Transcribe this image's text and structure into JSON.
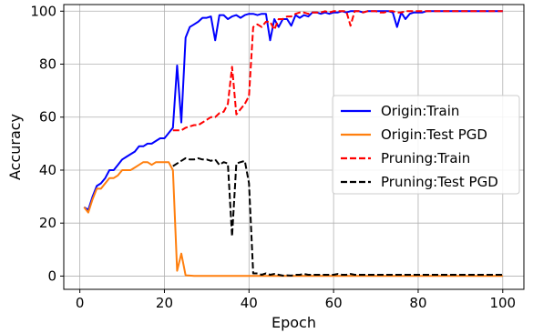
{
  "chart_data": {
    "type": "line",
    "title": "",
    "xlabel": "Epoch",
    "ylabel": "Accuracy",
    "xlim": [
      -3.8,
      105
    ],
    "ylim": [
      -5,
      102.5
    ],
    "xticks": [
      0,
      20,
      40,
      60,
      80,
      100
    ],
    "yticks": [
      0,
      20,
      40,
      60,
      80,
      100
    ],
    "grid": true,
    "legend_position": "center-right",
    "series": [
      {
        "name": "Origin:Train",
        "color": "#0000ff",
        "dash": "solid",
        "x": [
          1,
          2,
          3,
          4,
          5,
          6,
          7,
          8,
          9,
          10,
          11,
          12,
          13,
          14,
          15,
          16,
          17,
          18,
          19,
          20,
          21,
          22,
          23,
          24,
          25,
          26,
          27,
          28,
          29,
          30,
          31,
          32,
          33,
          34,
          35,
          36,
          37,
          38,
          39,
          40,
          41,
          42,
          43,
          44,
          45,
          46,
          47,
          48,
          49,
          50,
          51,
          52,
          53,
          54,
          55,
          56,
          57,
          58,
          59,
          60,
          61,
          62,
          63,
          64,
          65,
          66,
          67,
          68,
          69,
          70,
          71,
          72,
          73,
          74,
          75,
          76,
          77,
          78,
          79,
          80,
          81,
          82,
          83,
          84,
          85,
          86,
          87,
          88,
          89,
          90,
          91,
          92,
          93,
          94,
          95,
          96,
          97,
          98,
          99,
          100
        ],
        "y": [
          26,
          25,
          30,
          34,
          35,
          37,
          40,
          40,
          42,
          44,
          45,
          46,
          47,
          49,
          49,
          50,
          50,
          51,
          52,
          52,
          54,
          56,
          79.5,
          58,
          90,
          94,
          95,
          96,
          97.5,
          97.5,
          98,
          89,
          98.5,
          98.5,
          97,
          98,
          98.5,
          97.5,
          98.5,
          99,
          99,
          98.5,
          99,
          99,
          89,
          97,
          94,
          97,
          97,
          94.5,
          98.5,
          97.5,
          98.5,
          98,
          99.5,
          99.5,
          99,
          99.5,
          99,
          99.5,
          99.5,
          100,
          99.5,
          100,
          100,
          100,
          99.5,
          100,
          100,
          100,
          100,
          100,
          100,
          99.5,
          94,
          99.5,
          97,
          99,
          99.5,
          99.5,
          99.5,
          100,
          100,
          100,
          100,
          100,
          100,
          100,
          100,
          100,
          100,
          100,
          100,
          100,
          100,
          100,
          100,
          100,
          100,
          100
        ]
      },
      {
        "name": "Origin:Test PGD",
        "color": "#ff7f0e",
        "dash": "solid",
        "x": [
          1,
          2,
          3,
          4,
          5,
          6,
          7,
          8,
          9,
          10,
          11,
          12,
          13,
          14,
          15,
          16,
          17,
          18,
          19,
          20,
          21,
          22,
          23,
          24,
          25,
          26,
          27,
          28,
          29,
          30,
          31,
          32,
          33,
          34,
          35,
          36,
          37,
          38,
          39,
          40,
          41,
          42,
          43,
          44,
          45,
          46,
          47,
          48,
          49,
          50,
          51,
          52,
          53,
          54,
          55,
          56,
          57,
          58,
          59,
          60,
          61,
          62,
          63,
          64,
          65,
          66,
          67,
          68,
          69,
          70,
          71,
          72,
          73,
          74,
          75,
          76,
          77,
          78,
          79,
          80,
          81,
          82,
          83,
          84,
          85,
          86,
          87,
          88,
          89,
          90,
          91,
          92,
          93,
          94,
          95,
          96,
          97,
          98,
          99,
          100
        ],
        "y": [
          26,
          24,
          29,
          33,
          33,
          35,
          37,
          37,
          38,
          40,
          40,
          40,
          41,
          42,
          43,
          43,
          42,
          43,
          43,
          43,
          43,
          40,
          2,
          8.5,
          0.3,
          0.2,
          0.1,
          0.1,
          0.1,
          0.1,
          0.1,
          0.1,
          0.1,
          0.1,
          0.1,
          0.1,
          0.1,
          0.1,
          0.1,
          0.1,
          0.1,
          0.1,
          0.1,
          0.1,
          0.1,
          0.1,
          0.1,
          0.1,
          0.1,
          0.1,
          0.1,
          0.1,
          0.1,
          0.1,
          0.1,
          0.1,
          0.1,
          0.1,
          0.1,
          0.1,
          0.1,
          0.1,
          0.1,
          0.1,
          0.1,
          0.1,
          0.1,
          0.1,
          0.1,
          0.1,
          0.1,
          0.1,
          0.1,
          0.1,
          0.1,
          0.1,
          0.1,
          0.1,
          0.1,
          0.1,
          0.1,
          0.1,
          0.1,
          0.1,
          0.1,
          0.1,
          0.1,
          0.1,
          0.1,
          0.1,
          0.1,
          0.1,
          0.1,
          0.1,
          0.1,
          0.1,
          0.1,
          0.1,
          0.1,
          0.1
        ]
      },
      {
        "name": "Pruning:Train",
        "color": "#ff0000",
        "dash": "dashed",
        "x": [
          22,
          23,
          24,
          25,
          26,
          27,
          28,
          29,
          30,
          31,
          32,
          33,
          34,
          35,
          36,
          37,
          38,
          39,
          40,
          41,
          42,
          43,
          44,
          45,
          46,
          47,
          48,
          49,
          50,
          51,
          52,
          53,
          54,
          55,
          56,
          57,
          58,
          59,
          60,
          61,
          62,
          63,
          64,
          65,
          66,
          67,
          68,
          69,
          70,
          71,
          72,
          73,
          74,
          75,
          76,
          77,
          78,
          79,
          80,
          81,
          82,
          83,
          84,
          85,
          86,
          87,
          88,
          89,
          90,
          91,
          92,
          93,
          94,
          95,
          96,
          97,
          98,
          99,
          100
        ],
        "y": [
          55,
          55,
          55,
          56,
          56.5,
          57,
          57,
          58,
          59,
          60,
          60,
          61.5,
          62,
          65,
          79,
          61,
          63,
          65,
          68,
          94,
          95,
          94,
          96,
          96,
          93,
          97,
          97,
          98,
          98,
          99,
          99.5,
          99.5,
          99,
          99.5,
          99.5,
          99.5,
          100,
          99.5,
          100,
          100,
          100,
          100,
          94.5,
          100,
          100,
          99.5,
          100,
          100,
          100,
          99.5,
          99.5,
          100,
          100,
          99.5,
          99.5,
          100,
          100,
          100,
          100,
          100,
          100,
          100,
          100,
          100,
          100,
          100,
          100,
          100,
          100,
          100,
          100,
          100,
          100,
          100,
          100,
          100,
          100,
          100,
          100
        ]
      },
      {
        "name": "Pruning:Test PGD",
        "color": "#000000",
        "dash": "dashed",
        "x": [
          22,
          23,
          24,
          25,
          26,
          27,
          28,
          29,
          30,
          31,
          32,
          33,
          34,
          35,
          36,
          37,
          38,
          39,
          40,
          41,
          42,
          43,
          44,
          45,
          46,
          47,
          48,
          49,
          50,
          51,
          52,
          53,
          54,
          55,
          56,
          57,
          58,
          59,
          60,
          61,
          62,
          63,
          64,
          65,
          66,
          67,
          68,
          69,
          70,
          71,
          72,
          73,
          74,
          75,
          76,
          77,
          78,
          79,
          80,
          81,
          82,
          83,
          84,
          85,
          86,
          87,
          88,
          89,
          90,
          91,
          92,
          93,
          94,
          95,
          96,
          97,
          98,
          99,
          100
        ],
        "y": [
          41.5,
          42.5,
          43.5,
          44.5,
          44,
          44,
          44.5,
          44,
          44,
          43.5,
          44,
          42,
          43,
          42.5,
          15,
          42.5,
          43,
          43.5,
          35,
          1,
          1,
          0.5,
          1,
          0.5,
          0.8,
          0.5,
          0.2,
          0.3,
          0.2,
          0.5,
          0.5,
          0.8,
          0.5,
          0.5,
          0.5,
          0.5,
          0.5,
          0.5,
          0.5,
          0.8,
          0.5,
          0.5,
          0.8,
          0.5,
          0.5,
          0.5,
          0.5,
          0.5,
          0.5,
          0.5,
          0.5,
          0.5,
          0.5,
          0.5,
          0.5,
          0.5,
          0.5,
          0.5,
          0.5,
          0.5,
          0.5,
          0.5,
          0.5,
          0.5,
          0.5,
          0.5,
          0.5,
          0.5,
          0.5,
          0.5,
          0.5,
          0.5,
          0.5,
          0.5,
          0.5,
          0.5,
          0.5,
          0.5,
          0.5
        ]
      }
    ]
  }
}
